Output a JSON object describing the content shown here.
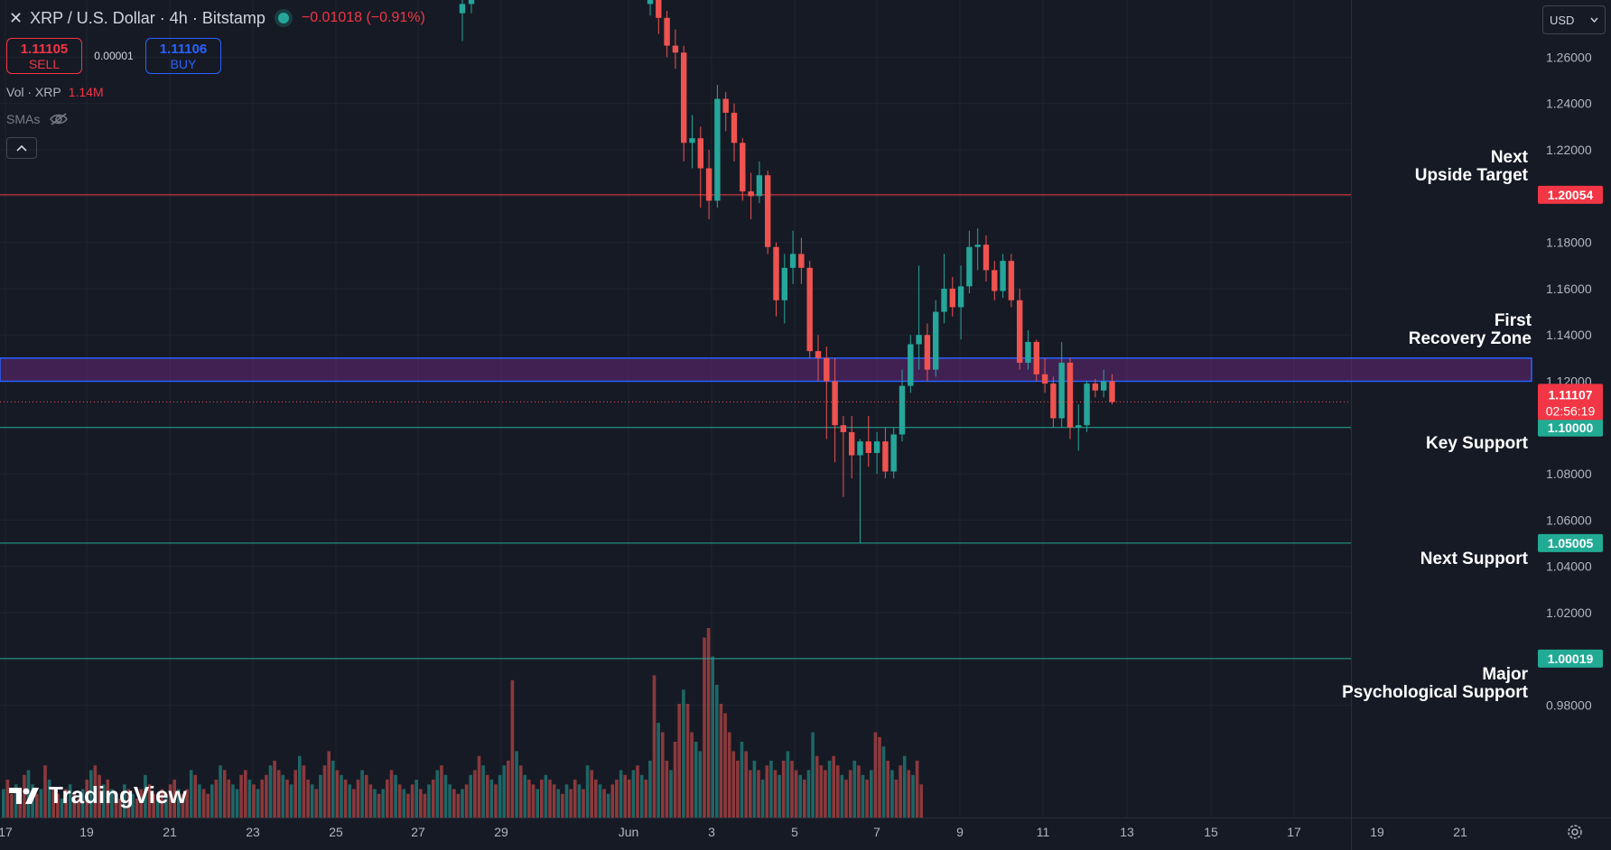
{
  "header": {
    "symbol_title": "XRP / U.S. Dollar · 4h · Bitstamp",
    "change": "−0.01018 (−0.91%)"
  },
  "trade": {
    "sell_price": "1.11105",
    "sell_label": "SELL",
    "spread": "0.00001",
    "buy_price": "1.11106",
    "buy_label": "BUY"
  },
  "volume_legend": {
    "label": "Vol · XRP",
    "value": "1.14M"
  },
  "indicator": {
    "label": "SMAs"
  },
  "currency_select": {
    "value": "USD"
  },
  "logo": {
    "text": "TradingView"
  },
  "colors": {
    "up": "#26a69a",
    "down": "#ef5350",
    "background": "#161a25",
    "zone": "#4a1f5e",
    "zone_border": "#2962ff"
  },
  "chart_data": {
    "type": "candlestick",
    "y_axis": {
      "min": 0.97,
      "max": 1.29,
      "ticks": [
        "1.26000",
        "1.24000",
        "1.22000",
        "1.20000",
        "1.18000",
        "1.16000",
        "1.14000",
        "1.12000",
        "1.10000",
        "1.08000",
        "1.06000",
        "1.04000",
        "1.02000",
        "1.00000",
        "0.98000"
      ]
    },
    "x_axis": {
      "ticks": [
        "17",
        "19",
        "21",
        "23",
        "25",
        "27",
        "29",
        "Jun",
        "3",
        "5",
        "7",
        "9",
        "11",
        "13",
        "15",
        "17",
        "19",
        "21"
      ]
    },
    "current_price": {
      "value": "1.11107",
      "countdown": "02:56:19"
    },
    "levels": [
      {
        "name": "Next Upside Target",
        "lines": [
          "Next",
          "Upside Target"
        ],
        "price": "1.20054",
        "color": "#f23645"
      },
      {
        "name": "Key Support",
        "lines": [
          "Key Support"
        ],
        "price": "1.10000",
        "color": "#22ab94"
      },
      {
        "name": "Next Support",
        "lines": [
          "Next Support"
        ],
        "price": "1.05005",
        "color": "#22ab94"
      },
      {
        "name": "Major Psychological Support",
        "lines": [
          "Major",
          "Psychological Support"
        ],
        "price": "1.00019",
        "color": "#22ab94"
      }
    ],
    "zone": {
      "name": "First Recovery Zone",
      "lines": [
        "First",
        "Recovery Zone"
      ],
      "low": 1.12,
      "high": 1.13
    },
    "candles": [
      {
        "t": "May 28 16:00",
        "o": 1.279,
        "h": 1.29,
        "l": 1.267,
        "c": 1.283
      },
      {
        "t": "May 28 20:00",
        "o": 1.283,
        "h": 1.295,
        "l": 1.279,
        "c": 1.29
      },
      {
        "t": "Jun 2 00:00",
        "o": 1.283,
        "h": 1.29,
        "l": 1.278,
        "c": 1.285
      },
      {
        "t": "Jun 2 04:00",
        "o": 1.29,
        "h": 1.292,
        "l": 1.27,
        "c": 1.277
      },
      {
        "t": "Jun 2 08:00",
        "o": 1.277,
        "h": 1.28,
        "l": 1.26,
        "c": 1.265
      },
      {
        "t": "Jun 2 12:00",
        "o": 1.265,
        "h": 1.272,
        "l": 1.255,
        "c": 1.262
      },
      {
        "t": "Jun 2 16:00",
        "o": 1.262,
        "h": 1.265,
        "l": 1.215,
        "c": 1.223
      },
      {
        "t": "Jun 2 20:00",
        "o": 1.223,
        "h": 1.235,
        "l": 1.212,
        "c": 1.225
      },
      {
        "t": "Jun 3 00:00",
        "o": 1.225,
        "h": 1.23,
        "l": 1.195,
        "c": 1.212
      },
      {
        "t": "Jun 3 04:00",
        "o": 1.212,
        "h": 1.22,
        "l": 1.19,
        "c": 1.198
      },
      {
        "t": "Jun 3 08:00",
        "o": 1.198,
        "h": 1.248,
        "l": 1.195,
        "c": 1.242
      },
      {
        "t": "Jun 3 12:00",
        "o": 1.242,
        "h": 1.245,
        "l": 1.228,
        "c": 1.236
      },
      {
        "t": "Jun 3 16:00",
        "o": 1.236,
        "h": 1.24,
        "l": 1.215,
        "c": 1.223
      },
      {
        "t": "Jun 3 20:00",
        "o": 1.223,
        "h": 1.225,
        "l": 1.198,
        "c": 1.202
      },
      {
        "t": "Jun 4 00:00",
        "o": 1.202,
        "h": 1.21,
        "l": 1.19,
        "c": 1.2
      },
      {
        "t": "Jun 4 04:00",
        "o": 1.2,
        "h": 1.215,
        "l": 1.197,
        "c": 1.209
      },
      {
        "t": "Jun 4 08:00",
        "o": 1.209,
        "h": 1.211,
        "l": 1.175,
        "c": 1.178
      },
      {
        "t": "Jun 4 12:00",
        "o": 1.178,
        "h": 1.18,
        "l": 1.148,
        "c": 1.155
      },
      {
        "t": "Jun 4 16:00",
        "o": 1.155,
        "h": 1.175,
        "l": 1.145,
        "c": 1.169
      },
      {
        "t": "Jun 4 20:00",
        "o": 1.169,
        "h": 1.185,
        "l": 1.162,
        "c": 1.175
      },
      {
        "t": "Jun 5 00:00",
        "o": 1.175,
        "h": 1.182,
        "l": 1.162,
        "c": 1.169
      },
      {
        "t": "Jun 5 04:00",
        "o": 1.169,
        "h": 1.172,
        "l": 1.13,
        "c": 1.133
      },
      {
        "t": "Jun 5 08:00",
        "o": 1.133,
        "h": 1.14,
        "l": 1.12,
        "c": 1.13
      },
      {
        "t": "Jun 5 12:00",
        "o": 1.13,
        "h": 1.135,
        "l": 1.095,
        "c": 1.12
      },
      {
        "t": "Jun 5 16:00",
        "o": 1.12,
        "h": 1.13,
        "l": 1.085,
        "c": 1.101
      },
      {
        "t": "Jun 5 20:00",
        "o": 1.101,
        "h": 1.105,
        "l": 1.07,
        "c": 1.098
      },
      {
        "t": "Jun 6 00:00",
        "o": 1.098,
        "h": 1.105,
        "l": 1.078,
        "c": 1.088
      },
      {
        "t": "Jun 6 04:00",
        "o": 1.088,
        "h": 1.095,
        "l": 1.05,
        "c": 1.094
      },
      {
        "t": "Jun 6 08:00",
        "o": 1.094,
        "h": 1.105,
        "l": 1.083,
        "c": 1.089
      },
      {
        "t": "Jun 6 12:00",
        "o": 1.089,
        "h": 1.098,
        "l": 1.08,
        "c": 1.094
      },
      {
        "t": "Jun 6 16:00",
        "o": 1.094,
        "h": 1.1,
        "l": 1.078,
        "c": 1.081
      },
      {
        "t": "Jun 6 20:00",
        "o": 1.081,
        "h": 1.1,
        "l": 1.078,
        "c": 1.097
      },
      {
        "t": "Jun 7 00:00",
        "o": 1.097,
        "h": 1.125,
        "l": 1.094,
        "c": 1.118
      },
      {
        "t": "Jun 7 04:00",
        "o": 1.118,
        "h": 1.14,
        "l": 1.115,
        "c": 1.136
      },
      {
        "t": "Jun 7 08:00",
        "o": 1.136,
        "h": 1.17,
        "l": 1.125,
        "c": 1.14
      },
      {
        "t": "Jun 7 12:00",
        "o": 1.14,
        "h": 1.145,
        "l": 1.12,
        "c": 1.125
      },
      {
        "t": "Jun 7 16:00",
        "o": 1.125,
        "h": 1.155,
        "l": 1.122,
        "c": 1.15
      },
      {
        "t": "Jun 7 20:00",
        "o": 1.15,
        "h": 1.175,
        "l": 1.145,
        "c": 1.16
      },
      {
        "t": "Jun 8 00:00",
        "o": 1.16,
        "h": 1.165,
        "l": 1.148,
        "c": 1.152
      },
      {
        "t": "Jun 8 04:00",
        "o": 1.152,
        "h": 1.17,
        "l": 1.138,
        "c": 1.161
      },
      {
        "t": "Jun 8 08:00",
        "o": 1.161,
        "h": 1.185,
        "l": 1.158,
        "c": 1.178
      },
      {
        "t": "Jun 8 12:00",
        "o": 1.178,
        "h": 1.186,
        "l": 1.168,
        "c": 1.179
      },
      {
        "t": "Jun 8 16:00",
        "o": 1.179,
        "h": 1.183,
        "l": 1.163,
        "c": 1.168
      },
      {
        "t": "Jun 8 20:00",
        "o": 1.168,
        "h": 1.172,
        "l": 1.155,
        "c": 1.159
      },
      {
        "t": "Jun 9 00:00",
        "o": 1.159,
        "h": 1.175,
        "l": 1.156,
        "c": 1.172
      },
      {
        "t": "Jun 9 04:00",
        "o": 1.172,
        "h": 1.175,
        "l": 1.152,
        "c": 1.155
      },
      {
        "t": "Jun 9 08:00",
        "o": 1.155,
        "h": 1.16,
        "l": 1.125,
        "c": 1.128
      },
      {
        "t": "Jun 9 12:00",
        "o": 1.128,
        "h": 1.142,
        "l": 1.125,
        "c": 1.137
      },
      {
        "t": "Jun 9 16:00",
        "o": 1.137,
        "h": 1.138,
        "l": 1.12,
        "c": 1.123
      },
      {
        "t": "Jun 9 20:00",
        "o": 1.123,
        "h": 1.13,
        "l": 1.115,
        "c": 1.119
      },
      {
        "t": "Jun 10 00:00",
        "o": 1.119,
        "h": 1.122,
        "l": 1.1,
        "c": 1.104
      },
      {
        "t": "Jun 10 04:00",
        "o": 1.104,
        "h": 1.137,
        "l": 1.1,
        "c": 1.128
      },
      {
        "t": "Jun 10 08:00",
        "o": 1.128,
        "h": 1.13,
        "l": 1.095,
        "c": 1.1
      },
      {
        "t": "Jun 10 12:00",
        "o": 1.1,
        "h": 1.11,
        "l": 1.09,
        "c": 1.101
      },
      {
        "t": "Jun 10 16:00",
        "o": 1.101,
        "h": 1.12,
        "l": 1.098,
        "c": 1.119
      },
      {
        "t": "Jun 10 20:00",
        "o": 1.119,
        "h": 1.121,
        "l": 1.113,
        "c": 1.116
      },
      {
        "t": "Jun 11 00:00",
        "o": 1.116,
        "h": 1.125,
        "l": 1.113,
        "c": 1.12
      },
      {
        "t": "Jun 11 04:00",
        "o": 1.12,
        "h": 1.123,
        "l": 1.11,
        "c": 1.111
      }
    ],
    "volume": {
      "values": [
        0.3,
        0.4,
        0.25,
        0.35,
        0.3,
        0.45,
        0.5,
        0.35,
        0.25,
        0.3,
        0.55,
        0.4,
        0.3,
        0.25,
        0.2,
        0.3,
        0.35,
        0.25,
        0.2,
        0.3,
        0.4,
        0.5,
        0.55,
        0.45,
        0.35,
        0.4,
        0.3,
        0.25,
        0.2,
        0.35,
        0.3,
        0.25,
        0.2,
        0.3,
        0.45,
        0.35,
        0.25,
        0.2,
        0.3,
        0.25,
        0.35,
        0.4,
        0.3,
        0.25,
        0.3,
        0.5,
        0.45,
        0.35,
        0.3,
        0.25,
        0.35,
        0.4,
        0.55,
        0.5,
        0.4,
        0.35,
        0.3,
        0.45,
        0.5,
        0.4,
        0.35,
        0.3,
        0.4,
        0.45,
        0.55,
        0.6,
        0.5,
        0.45,
        0.4,
        0.35,
        0.5,
        0.65,
        0.55,
        0.4,
        0.35,
        0.3,
        0.45,
        0.55,
        0.7,
        0.6,
        0.5,
        0.45,
        0.4,
        0.35,
        0.3,
        0.4,
        0.5,
        0.45,
        0.35,
        0.3,
        0.25,
        0.3,
        0.4,
        0.5,
        0.45,
        0.35,
        0.3,
        0.25,
        0.35,
        0.4,
        0.3,
        0.25,
        0.35,
        0.4,
        0.5,
        0.55,
        0.45,
        0.35,
        0.3,
        0.25,
        0.3,
        0.35,
        0.45,
        0.5,
        0.65,
        0.55,
        0.45,
        0.4,
        0.35,
        0.45,
        0.55,
        0.6,
        1.45,
        0.7,
        0.55,
        0.45,
        0.4,
        0.35,
        0.3,
        0.4,
        0.45,
        0.4,
        0.35,
        0.3,
        0.25,
        0.35,
        0.3,
        0.4,
        0.35,
        0.3,
        0.55,
        0.5,
        0.4,
        0.35,
        0.3,
        0.25,
        0.35,
        0.4,
        0.5,
        0.45,
        0.4,
        0.5,
        0.55,
        0.45,
        0.4,
        0.6,
        1.5,
        1.0,
        0.9,
        0.6,
        0.5,
        0.8,
        1.2,
        1.35,
        1.2,
        0.9,
        0.8,
        0.7,
        1.9,
        2.0,
        1.7,
        1.4,
        1.2,
        1.1,
        0.9,
        0.7,
        0.6,
        0.8,
        0.7,
        0.5,
        0.6,
        0.5,
        0.4,
        0.55,
        0.6,
        0.5,
        0.45,
        0.6,
        0.7,
        0.6,
        0.5,
        0.45,
        0.4,
        0.5,
        0.9,
        0.65,
        0.55,
        0.5,
        0.6,
        0.65,
        0.55,
        0.45,
        0.4,
        0.5,
        0.6,
        0.55,
        0.45,
        0.4,
        0.5,
        0.9,
        0.85,
        0.75,
        0.6,
        0.5,
        0.4,
        0.55,
        0.65,
        0.5,
        0.45,
        0.6,
        0.35
      ],
      "up_flags": [
        1,
        0,
        0,
        1,
        0,
        0,
        1,
        1,
        0,
        1,
        0,
        1,
        0,
        0,
        1,
        0,
        1,
        0,
        0,
        1,
        0,
        1,
        0,
        0,
        1,
        0,
        1,
        0,
        0,
        1,
        0,
        1,
        0,
        0,
        1,
        0,
        0,
        1,
        0,
        1,
        0,
        0,
        1,
        0,
        0,
        1,
        0,
        1,
        0,
        0,
        1,
        0,
        1,
        0,
        0,
        1,
        1,
        0,
        0,
        1,
        0,
        1,
        0,
        0,
        1,
        0,
        0,
        1,
        0,
        1,
        0,
        1,
        0,
        0,
        1,
        0,
        1,
        0,
        0,
        1,
        0,
        1,
        0,
        1,
        0,
        0,
        1,
        0,
        0,
        1,
        0,
        1,
        0,
        0,
        1,
        0,
        1,
        0,
        0,
        1,
        0,
        0,
        1,
        0,
        1,
        0,
        1,
        1,
        0,
        0,
        1,
        0,
        1,
        0,
        0,
        1,
        0,
        1,
        0,
        1,
        1,
        0,
        0,
        1,
        0,
        1,
        0,
        0,
        1,
        0,
        1,
        0,
        0,
        1,
        0,
        1,
        0,
        0,
        1,
        0,
        1,
        0,
        0,
        1,
        0,
        1,
        0,
        0,
        1,
        0,
        0,
        1,
        0,
        1,
        0,
        1,
        0,
        1,
        0,
        0,
        1,
        0,
        0,
        1,
        0,
        0,
        1,
        1,
        0,
        0,
        1,
        1,
        0,
        0,
        0,
        0,
        0,
        1,
        0,
        0,
        1,
        0,
        1,
        0,
        1,
        0,
        1,
        0,
        1,
        0,
        0,
        1,
        0,
        1,
        1,
        0,
        0,
        0,
        1,
        0,
        0,
        1,
        0,
        0,
        1,
        0,
        1,
        0,
        1,
        0,
        0,
        1,
        0,
        1,
        0,
        0,
        1,
        0,
        1,
        0,
        0,
        1,
        0,
        1,
        0
      ]
    }
  }
}
